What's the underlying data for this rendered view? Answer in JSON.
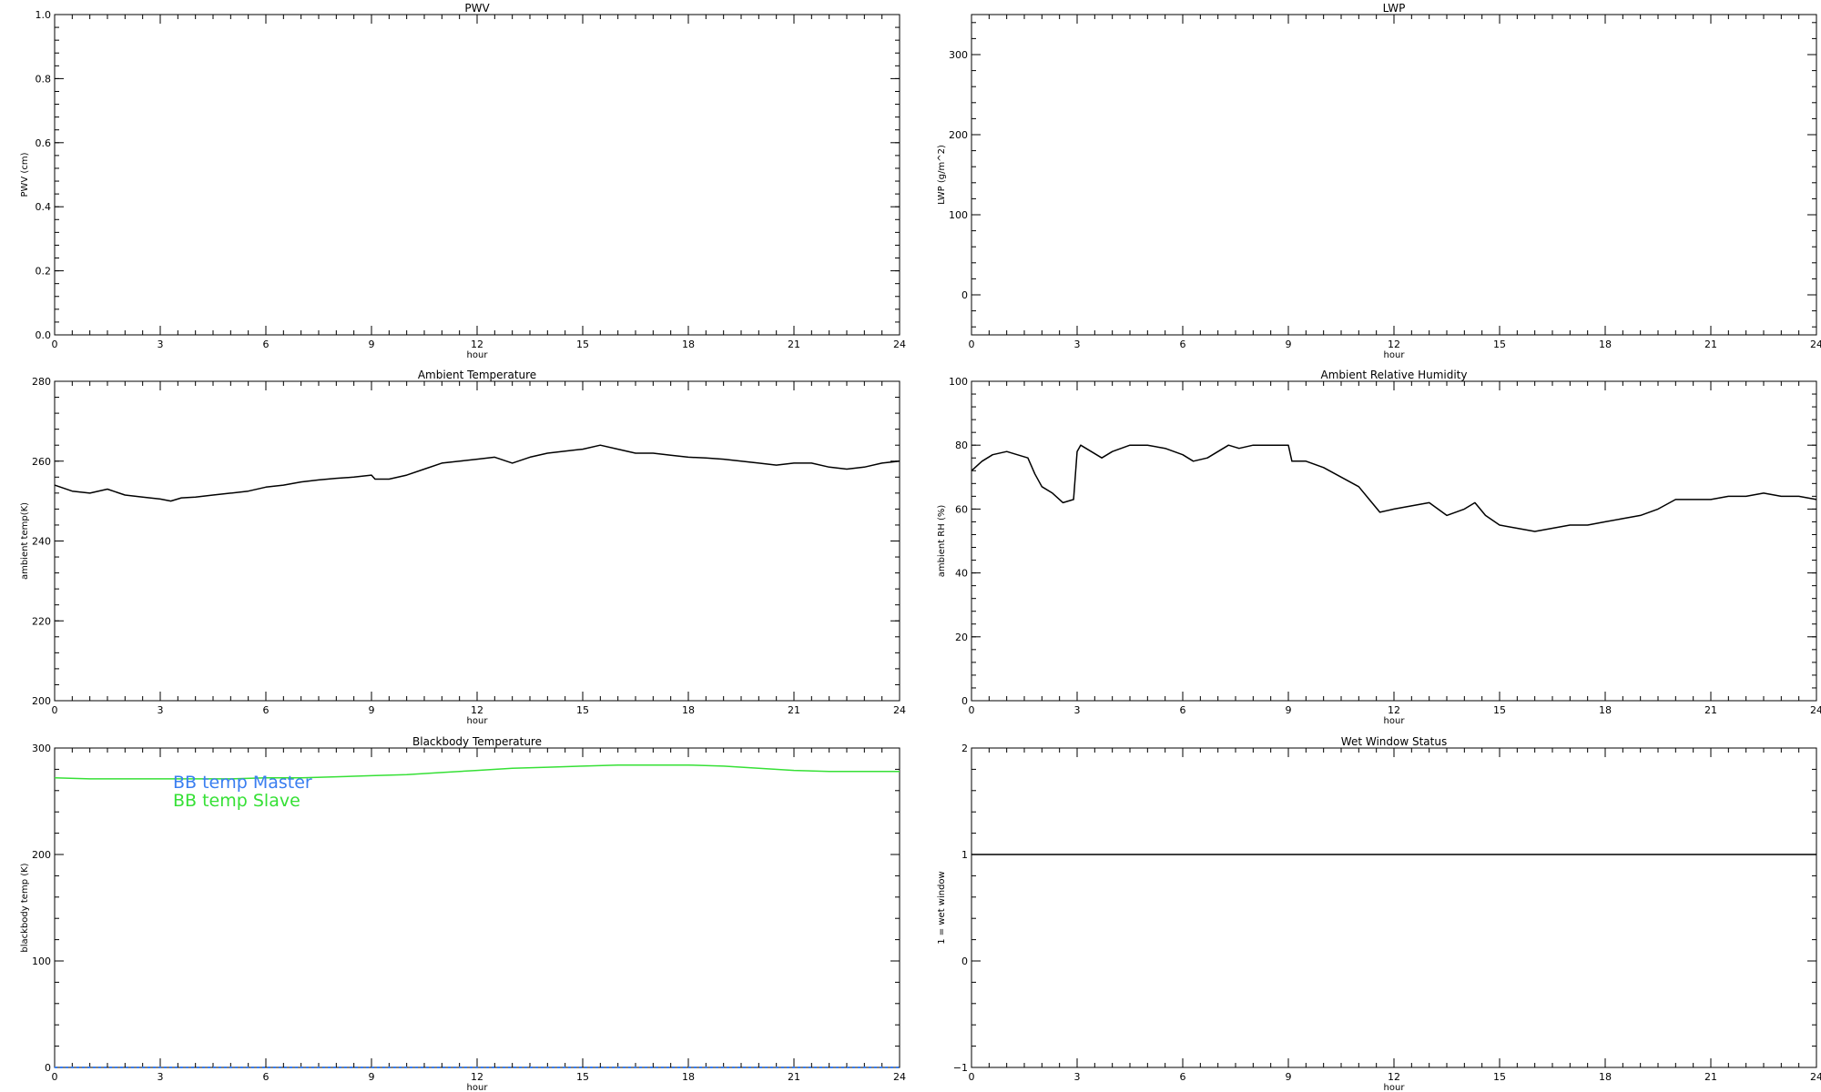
{
  "chart_data": [
    {
      "id": "pwv",
      "type": "line",
      "title": "PWV",
      "xlabel": "hour",
      "ylabel": "PWV (cm)",
      "xlim": [
        0,
        24
      ],
      "ylim": [
        0,
        1
      ],
      "xticks": [
        0,
        3,
        6,
        9,
        12,
        15,
        18,
        21,
        24
      ],
      "yticks": [
        0,
        0.2,
        0.4,
        0.6,
        0.8,
        1.0
      ],
      "ytick_labels": [
        "0.0",
        "0.2",
        "0.4",
        "0.6",
        "0.8",
        "1.0"
      ],
      "series": []
    },
    {
      "id": "lwp",
      "type": "line",
      "title": "LWP",
      "xlabel": "hour",
      "ylabel": "LWP (g/m^2)",
      "xlim": [
        0,
        24
      ],
      "ylim": [
        -50,
        350
      ],
      "xticks": [
        0,
        3,
        6,
        9,
        12,
        15,
        18,
        21,
        24
      ],
      "yticks": [
        0,
        100,
        200,
        300
      ],
      "ytick_labels": [
        "0",
        "100",
        "200",
        "300"
      ],
      "series": []
    },
    {
      "id": "ambient-temp",
      "type": "line",
      "title": "Ambient Temperature",
      "xlabel": "hour",
      "ylabel": "ambient temp(K)",
      "xlim": [
        0,
        24
      ],
      "ylim": [
        200,
        280
      ],
      "xticks": [
        0,
        3,
        6,
        9,
        12,
        15,
        18,
        21,
        24
      ],
      "yticks": [
        200,
        220,
        240,
        260,
        280
      ],
      "ytick_labels": [
        "200",
        "220",
        "240",
        "260",
        "280"
      ],
      "series": [
        {
          "color": "#000000",
          "x": [
            0,
            0.5,
            1,
            1.5,
            2,
            2.5,
            3,
            3.3,
            3.6,
            4,
            4.5,
            5,
            5.5,
            6,
            6.5,
            7,
            7.5,
            8,
            8.5,
            9,
            9.1,
            9.5,
            10,
            10.5,
            11,
            11.5,
            12,
            12.5,
            13,
            13.5,
            14,
            14.5,
            15,
            15.5,
            16,
            16.5,
            17,
            17.5,
            18,
            18.5,
            19,
            19.5,
            20,
            20.5,
            21,
            21.5,
            22,
            22.5,
            23,
            23.5,
            24
          ],
          "y": [
            254,
            252.5,
            252,
            253,
            251.5,
            251,
            250.5,
            250,
            250.8,
            251,
            251.5,
            252,
            252.5,
            253.5,
            254,
            254.8,
            255.3,
            255.7,
            256,
            256.5,
            255.5,
            255.5,
            256.5,
            258,
            259.5,
            260,
            260.5,
            261,
            259.5,
            261,
            262,
            262.5,
            263,
            264,
            263,
            262,
            262,
            261.5,
            261,
            260.8,
            260.5,
            260,
            259.5,
            259,
            259.5,
            259.5,
            258.5,
            258,
            258.5,
            259.5,
            260
          ]
        }
      ]
    },
    {
      "id": "ambient-rh",
      "type": "line",
      "title": "Ambient Relative Humidity",
      "xlabel": "hour",
      "ylabel": "ambient RH (%)",
      "xlim": [
        0,
        24
      ],
      "ylim": [
        0,
        100
      ],
      "xticks": [
        0,
        3,
        6,
        9,
        12,
        15,
        18,
        21,
        24
      ],
      "yticks": [
        0,
        20,
        40,
        60,
        80,
        100
      ],
      "ytick_labels": [
        "0",
        "20",
        "40",
        "60",
        "80",
        "100"
      ],
      "series": [
        {
          "color": "#000000",
          "x": [
            0,
            0.3,
            0.6,
            1,
            1.3,
            1.6,
            1.8,
            2,
            2.3,
            2.6,
            2.9,
            3,
            3.1,
            3.4,
            3.7,
            4,
            4.5,
            5,
            5.5,
            6,
            6.3,
            6.7,
            7,
            7.3,
            7.6,
            8,
            8.5,
            9,
            9.1,
            9.5,
            10,
            10.5,
            11,
            11.3,
            11.6,
            12,
            12.5,
            13,
            13.5,
            14,
            14.3,
            14.6,
            15,
            15.5,
            16,
            16.5,
            17,
            17.5,
            18,
            18.5,
            19,
            19.5,
            20,
            20.5,
            21,
            21.5,
            22,
            22.5,
            23,
            23.5,
            24
          ],
          "y": [
            72,
            75,
            77,
            78,
            77,
            76,
            71,
            67,
            65,
            62,
            63,
            78,
            80,
            78,
            76,
            78,
            80,
            80,
            79,
            77,
            75,
            76,
            78,
            80,
            79,
            80,
            80,
            80,
            75,
            75,
            73,
            70,
            67,
            63,
            59,
            60,
            61,
            62,
            58,
            60,
            62,
            58,
            55,
            54,
            53,
            54,
            55,
            55,
            56,
            57,
            58,
            60,
            63,
            63,
            63,
            64,
            64,
            65,
            64,
            64,
            63
          ]
        }
      ]
    },
    {
      "id": "bb-temp",
      "type": "line",
      "title": "Blackbody Temperature",
      "xlabel": "hour",
      "ylabel": "blackbody temp (K)",
      "xlim": [
        0,
        24
      ],
      "ylim": [
        0,
        300
      ],
      "xticks": [
        0,
        3,
        6,
        9,
        12,
        15,
        18,
        21,
        24
      ],
      "yticks": [
        0,
        100,
        200,
        300
      ],
      "ytick_labels": [
        "0",
        "100",
        "200",
        "300"
      ],
      "legend_loc": "top-left",
      "series": [
        {
          "name": "BB temp Master",
          "color": "#3a7ef0",
          "x": [
            0,
            24
          ],
          "y": [
            0,
            0
          ]
        },
        {
          "name": "BB temp Slave",
          "color": "#36e036",
          "x": [
            0,
            1,
            2,
            3,
            4,
            5,
            6,
            7,
            8,
            9,
            10,
            11,
            12,
            13,
            14,
            15,
            16,
            17,
            18,
            19,
            20,
            21,
            22,
            23,
            24
          ],
          "y": [
            272,
            271,
            271,
            271,
            271,
            271,
            272,
            272,
            273,
            274,
            275,
            277,
            279,
            281,
            282,
            283,
            284,
            284,
            284,
            283,
            281,
            279,
            278,
            278,
            278
          ]
        }
      ]
    },
    {
      "id": "wet-window",
      "type": "line",
      "title": "Wet Window Status",
      "xlabel": "hour",
      "ylabel": "1 = wet window",
      "xlim": [
        0,
        24
      ],
      "ylim": [
        -1,
        2
      ],
      "xticks": [
        0,
        3,
        6,
        9,
        12,
        15,
        18,
        21,
        24
      ],
      "yticks": [
        -1,
        0,
        1,
        2
      ],
      "ytick_labels": [
        "−1",
        "0",
        "1",
        "2"
      ],
      "series": [
        {
          "color": "#000000",
          "x": [
            0,
            24
          ],
          "y": [
            1,
            1
          ]
        }
      ]
    }
  ]
}
